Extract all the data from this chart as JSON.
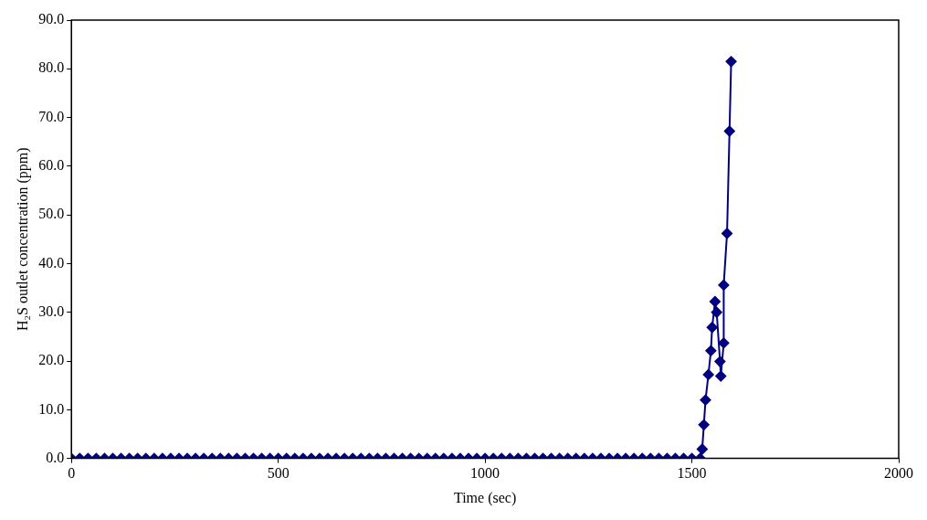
{
  "chart_data": {
    "type": "line",
    "xlabel": "Time (sec)",
    "ylabel": "H₂S outlet concentration (ppm)",
    "x": [
      0,
      20,
      40,
      60,
      80,
      100,
      120,
      140,
      160,
      180,
      200,
      220,
      240,
      260,
      280,
      300,
      320,
      340,
      360,
      380,
      400,
      420,
      440,
      460,
      480,
      500,
      520,
      540,
      560,
      580,
      600,
      620,
      640,
      660,
      680,
      700,
      720,
      740,
      760,
      780,
      800,
      820,
      840,
      860,
      880,
      900,
      920,
      940,
      960,
      980,
      1000,
      1020,
      1040,
      1060,
      1080,
      1100,
      1120,
      1140,
      1160,
      1180,
      1200,
      1220,
      1240,
      1260,
      1280,
      1300,
      1320,
      1340,
      1360,
      1380,
      1400,
      1420,
      1440,
      1460,
      1480,
      1500,
      1520,
      1525,
      1529,
      1533,
      1540,
      1546,
      1549,
      1556,
      1560,
      1568,
      1570,
      1577,
      1577,
      1585,
      1591,
      1595
    ],
    "series": [
      {
        "color": "#000080",
        "values": [
          0,
          0,
          0,
          0,
          0,
          0,
          0,
          0,
          0,
          0,
          0,
          0,
          0,
          0,
          0,
          0,
          0,
          0,
          0,
          0,
          0,
          0,
          0,
          0,
          0,
          0,
          0,
          0,
          0,
          0,
          0,
          0,
          0,
          0,
          0,
          0,
          0,
          0,
          0,
          0,
          0,
          0,
          0,
          0,
          0,
          0,
          0,
          0,
          0,
          0,
          0,
          0,
          0,
          0,
          0,
          0,
          0,
          0,
          0,
          0,
          0,
          0,
          0,
          0,
          0,
          0,
          0,
          0,
          0,
          0,
          0,
          0,
          0,
          0,
          0,
          0,
          0,
          1.9,
          6.9,
          12.0,
          17.2,
          22.1,
          26.9,
          32.2,
          30.0,
          19.9,
          16.9,
          23.7,
          35.6,
          46.2,
          67.2,
          81.5
        ]
      }
    ],
    "xlim": [
      0,
      2000
    ],
    "xticks": [
      0,
      500,
      1000,
      1500,
      2000
    ],
    "ylim": [
      0,
      90
    ],
    "yticks": [
      {
        "value": 0,
        "label": "0.0"
      },
      {
        "value": 10,
        "label": "10.0"
      },
      {
        "value": 20,
        "label": "20.0"
      },
      {
        "value": 30,
        "label": "30.0"
      },
      {
        "value": 40,
        "label": "40.0"
      },
      {
        "value": 50,
        "label": "50.0"
      },
      {
        "value": 60,
        "label": "60.0"
      },
      {
        "value": 70,
        "label": "70.0"
      },
      {
        "value": 80,
        "label": "80.0"
      },
      {
        "value": 90,
        "label": "90.0"
      }
    ],
    "grid": false,
    "legend": false,
    "marker": "diamond",
    "line_style": "solid"
  }
}
